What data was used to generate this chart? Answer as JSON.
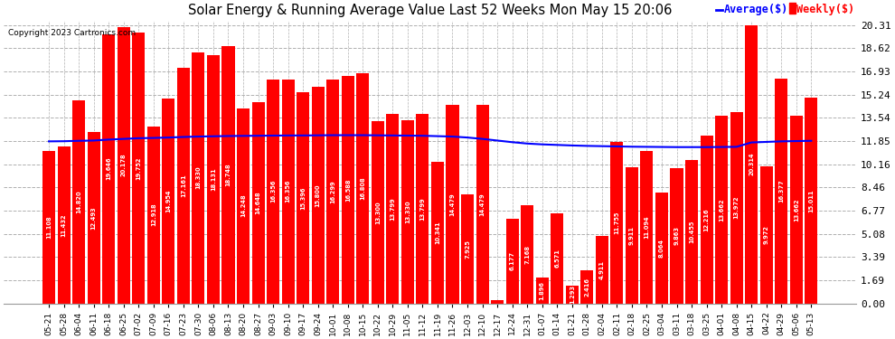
{
  "title": "Solar Energy & Running Average Value Last 52 Weeks Mon May 15 20:06",
  "copyright": "Copyright 2023 Cartronics.com",
  "bar_color": "#ff0000",
  "avg_line_color": "#0000ff",
  "background_color": "#ffffff",
  "grid_color": "#b0b0b0",
  "yticks": [
    0.0,
    1.69,
    3.39,
    5.08,
    6.77,
    8.46,
    10.16,
    11.85,
    13.54,
    15.24,
    16.93,
    18.62,
    20.31
  ],
  "categories": [
    "05-21",
    "05-28",
    "06-04",
    "06-11",
    "06-18",
    "06-25",
    "07-02",
    "07-09",
    "07-16",
    "07-23",
    "07-30",
    "08-06",
    "08-13",
    "08-20",
    "08-27",
    "09-03",
    "09-10",
    "09-17",
    "09-24",
    "10-01",
    "10-08",
    "10-15",
    "10-22",
    "10-29",
    "11-05",
    "11-12",
    "11-19",
    "11-26",
    "12-03",
    "12-10",
    "12-17",
    "12-24",
    "12-31",
    "01-07",
    "01-14",
    "01-21",
    "01-28",
    "02-04",
    "02-11",
    "02-18",
    "02-25",
    "03-04",
    "03-11",
    "03-18",
    "03-25",
    "04-01",
    "04-08",
    "04-15",
    "04-22",
    "04-29",
    "05-06",
    "05-13"
  ],
  "weekly_values": [
    11.108,
    11.432,
    14.82,
    12.493,
    19.646,
    20.178,
    19.752,
    12.918,
    14.954,
    17.161,
    18.33,
    18.131,
    18.748,
    14.248,
    14.648,
    16.356,
    16.356,
    15.396,
    15.8,
    16.299,
    16.588,
    16.808,
    13.3,
    13.799,
    13.33,
    13.799,
    10.341,
    14.479,
    7.925,
    14.479,
    0.243,
    6.177,
    7.168,
    1.896,
    6.571,
    1.293,
    2.416,
    4.911,
    11.755,
    9.911,
    11.094,
    8.064,
    9.863,
    10.455,
    12.216,
    13.662,
    13.972,
    20.314,
    9.972,
    16.377,
    13.662,
    15.011
  ],
  "avg_values": [
    11.82,
    11.83,
    11.86,
    11.88,
    11.95,
    12.0,
    12.05,
    12.07,
    12.1,
    12.14,
    12.17,
    12.19,
    12.21,
    12.22,
    12.23,
    12.24,
    12.25,
    12.25,
    12.26,
    12.27,
    12.27,
    12.27,
    12.26,
    12.25,
    12.24,
    12.23,
    12.2,
    12.17,
    12.1,
    12.0,
    11.88,
    11.76,
    11.66,
    11.6,
    11.56,
    11.52,
    11.49,
    11.47,
    11.45,
    11.43,
    11.42,
    11.41,
    11.4,
    11.4,
    11.4,
    11.41,
    11.42,
    11.74,
    11.78,
    11.82,
    11.84,
    11.86
  ]
}
